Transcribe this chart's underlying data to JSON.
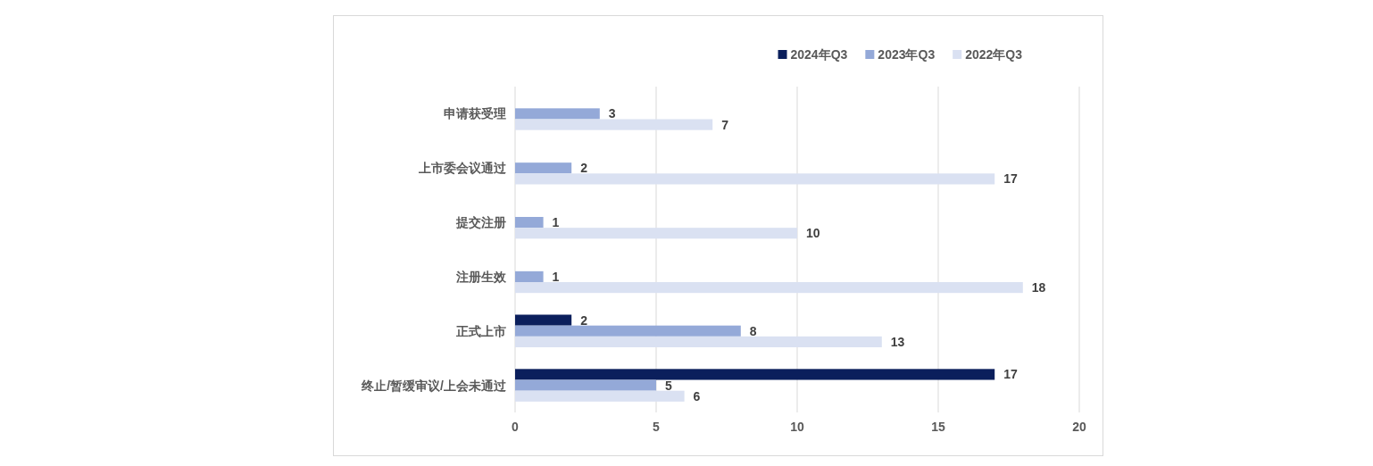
{
  "chart_data": {
    "type": "bar",
    "orientation": "horizontal",
    "categories": [
      "申请获受理",
      "上市委会议通过",
      "提交注册",
      "注册生效",
      "正式上市",
      "终止/暂缓审议/上会未通过"
    ],
    "series": [
      {
        "name": "2024年Q3",
        "color": "#0b1f5c",
        "values": [
          null,
          null,
          null,
          null,
          2,
          17
        ]
      },
      {
        "name": "2023年Q3",
        "color": "#94a9d8",
        "values": [
          3,
          2,
          1,
          1,
          8,
          5
        ]
      },
      {
        "name": "2022年Q3",
        "color": "#dae1f2",
        "values": [
          7,
          17,
          10,
          18,
          13,
          6
        ]
      }
    ],
    "xlim": [
      0,
      20
    ],
    "xticks": [
      0,
      5,
      10,
      15,
      20
    ],
    "grid": "x",
    "legend": "top right",
    "data_labels": true
  }
}
